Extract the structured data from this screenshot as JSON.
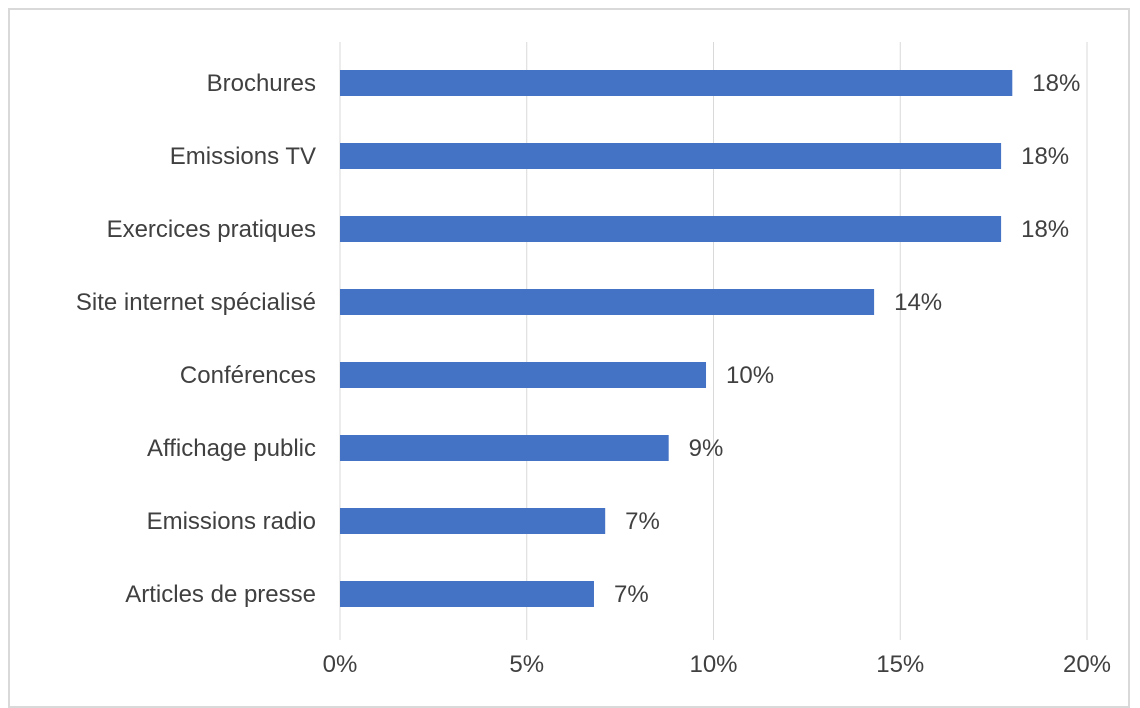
{
  "chart_data": {
    "type": "bar",
    "orientation": "horizontal",
    "title": "",
    "xlabel": "",
    "ylabel": "",
    "categories": [
      "Brochures",
      "Emissions TV",
      "Exercices pratiques",
      "Site internet spécialisé",
      "Conférences",
      "Affichage public",
      "Emissions radio",
      "Articles de presse"
    ],
    "values": [
      18,
      17.7,
      17.7,
      14.3,
      9.8,
      8.8,
      7.1,
      6.8
    ],
    "value_labels": [
      "18%",
      "18%",
      "18%",
      "14%",
      "10%",
      "9%",
      "7%",
      "7%"
    ],
    "xlim": [
      0,
      20
    ],
    "ticks": [
      0,
      5,
      10,
      15,
      20
    ],
    "tick_labels": [
      "0%",
      "5%",
      "10%",
      "15%",
      "20%"
    ],
    "grid": "vertical",
    "legend": "none",
    "bar_color": "#4472c4",
    "grid_color": "#d9d9d9",
    "text_color": "#404040"
  }
}
